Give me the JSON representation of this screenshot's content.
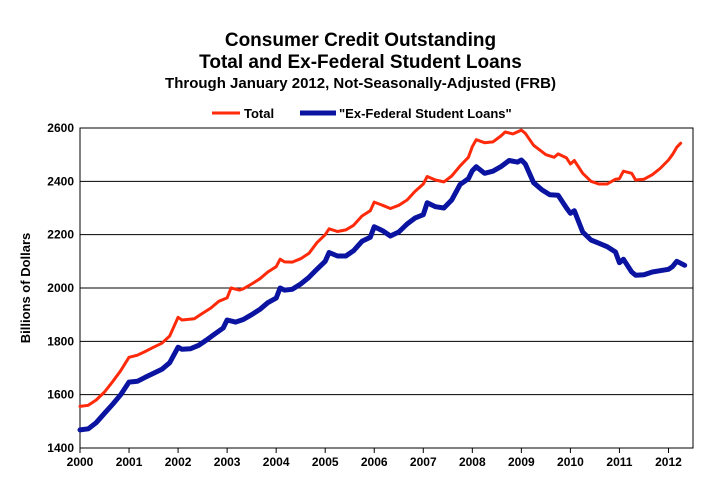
{
  "chart_data": {
    "type": "line",
    "title": "Consumer Credit Outstanding",
    "subtitle": "Total and Ex-Federal Student Loans",
    "subtitle2": "Through January 2012, Not-Seasonally-Adjusted (FRB)",
    "xlabel": "",
    "ylabel": "Billions of Dollars",
    "xlim": [
      2000,
      2012.5
    ],
    "ylim": [
      1400,
      2600
    ],
    "x_ticks": [
      "2000",
      "2001",
      "2002",
      "2003",
      "2004",
      "2005",
      "2006",
      "2007",
      "2008",
      "2009",
      "2010",
      "2011",
      "2012"
    ],
    "y_ticks": [
      "1400",
      "1600",
      "1800",
      "2000",
      "2200",
      "2400",
      "2600"
    ],
    "grid": "horizontal",
    "legend_position": "top",
    "series": [
      {
        "name": "Total",
        "color": "#ff2a0a",
        "points": [
          [
            2000.0,
            1556
          ],
          [
            2000.17,
            1560
          ],
          [
            2000.33,
            1580
          ],
          [
            2000.5,
            1610
          ],
          [
            2000.67,
            1650
          ],
          [
            2000.83,
            1690
          ],
          [
            2001.0,
            1740
          ],
          [
            2001.17,
            1748
          ],
          [
            2001.33,
            1762
          ],
          [
            2001.5,
            1778
          ],
          [
            2001.67,
            1793
          ],
          [
            2001.83,
            1820
          ],
          [
            2002.0,
            1890
          ],
          [
            2002.08,
            1880
          ],
          [
            2002.33,
            1885
          ],
          [
            2002.5,
            1905
          ],
          [
            2002.67,
            1925
          ],
          [
            2002.83,
            1950
          ],
          [
            2003.0,
            1963
          ],
          [
            2003.08,
            2000
          ],
          [
            2003.25,
            1992
          ],
          [
            2003.33,
            1997
          ],
          [
            2003.5,
            2015
          ],
          [
            2003.67,
            2035
          ],
          [
            2003.83,
            2060
          ],
          [
            2004.0,
            2080
          ],
          [
            2004.08,
            2108
          ],
          [
            2004.17,
            2098
          ],
          [
            2004.33,
            2097
          ],
          [
            2004.5,
            2110
          ],
          [
            2004.67,
            2130
          ],
          [
            2004.83,
            2170
          ],
          [
            2005.0,
            2200
          ],
          [
            2005.08,
            2222
          ],
          [
            2005.25,
            2212
          ],
          [
            2005.42,
            2218
          ],
          [
            2005.58,
            2235
          ],
          [
            2005.75,
            2270
          ],
          [
            2005.92,
            2290
          ],
          [
            2006.0,
            2322
          ],
          [
            2006.17,
            2310
          ],
          [
            2006.33,
            2298
          ],
          [
            2006.5,
            2310
          ],
          [
            2006.67,
            2330
          ],
          [
            2006.83,
            2362
          ],
          [
            2007.0,
            2390
          ],
          [
            2007.08,
            2418
          ],
          [
            2007.25,
            2405
          ],
          [
            2007.42,
            2398
          ],
          [
            2007.58,
            2420
          ],
          [
            2007.75,
            2458
          ],
          [
            2007.92,
            2490
          ],
          [
            2008.0,
            2530
          ],
          [
            2008.08,
            2556
          ],
          [
            2008.25,
            2545
          ],
          [
            2008.42,
            2548
          ],
          [
            2008.58,
            2570
          ],
          [
            2008.67,
            2585
          ],
          [
            2008.83,
            2578
          ],
          [
            2009.0,
            2592
          ],
          [
            2009.08,
            2580
          ],
          [
            2009.25,
            2535
          ],
          [
            2009.5,
            2500
          ],
          [
            2009.67,
            2490
          ],
          [
            2009.75,
            2503
          ],
          [
            2009.92,
            2488
          ],
          [
            2010.0,
            2465
          ],
          [
            2010.08,
            2478
          ],
          [
            2010.25,
            2430
          ],
          [
            2010.42,
            2400
          ],
          [
            2010.58,
            2390
          ],
          [
            2010.75,
            2390
          ],
          [
            2010.92,
            2408
          ],
          [
            2011.0,
            2410
          ],
          [
            2011.08,
            2438
          ],
          [
            2011.25,
            2430
          ],
          [
            2011.33,
            2405
          ],
          [
            2011.5,
            2408
          ],
          [
            2011.67,
            2425
          ],
          [
            2011.83,
            2448
          ],
          [
            2012.0,
            2480
          ],
          [
            2012.08,
            2500
          ],
          [
            2012.17,
            2528
          ],
          [
            2012.25,
            2543
          ]
        ]
      },
      {
        "name": "\"Ex-Federal Student Loans\"",
        "color": "#0a14a0",
        "points": [
          [
            2000.0,
            1468
          ],
          [
            2000.17,
            1472
          ],
          [
            2000.33,
            1495
          ],
          [
            2000.5,
            1530
          ],
          [
            2000.67,
            1565
          ],
          [
            2000.83,
            1600
          ],
          [
            2001.0,
            1647
          ],
          [
            2001.17,
            1650
          ],
          [
            2001.33,
            1665
          ],
          [
            2001.5,
            1680
          ],
          [
            2001.67,
            1695
          ],
          [
            2001.83,
            1720
          ],
          [
            2002.0,
            1778
          ],
          [
            2002.08,
            1770
          ],
          [
            2002.25,
            1772
          ],
          [
            2002.42,
            1785
          ],
          [
            2002.58,
            1805
          ],
          [
            2002.75,
            1828
          ],
          [
            2002.92,
            1850
          ],
          [
            2003.0,
            1880
          ],
          [
            2003.17,
            1872
          ],
          [
            2003.33,
            1882
          ],
          [
            2003.5,
            1900
          ],
          [
            2003.67,
            1920
          ],
          [
            2003.83,
            1945
          ],
          [
            2004.0,
            1962
          ],
          [
            2004.08,
            2000
          ],
          [
            2004.17,
            1992
          ],
          [
            2004.33,
            1995
          ],
          [
            2004.5,
            2015
          ],
          [
            2004.67,
            2040
          ],
          [
            2004.83,
            2070
          ],
          [
            2005.0,
            2100
          ],
          [
            2005.08,
            2133
          ],
          [
            2005.25,
            2120
          ],
          [
            2005.42,
            2120
          ],
          [
            2005.58,
            2140
          ],
          [
            2005.75,
            2175
          ],
          [
            2005.92,
            2190
          ],
          [
            2006.0,
            2230
          ],
          [
            2006.17,
            2215
          ],
          [
            2006.33,
            2195
          ],
          [
            2006.5,
            2210
          ],
          [
            2006.67,
            2240
          ],
          [
            2006.83,
            2262
          ],
          [
            2007.0,
            2275
          ],
          [
            2007.08,
            2320
          ],
          [
            2007.25,
            2305
          ],
          [
            2007.42,
            2300
          ],
          [
            2007.58,
            2330
          ],
          [
            2007.75,
            2388
          ],
          [
            2007.92,
            2410
          ],
          [
            2008.0,
            2440
          ],
          [
            2008.08,
            2455
          ],
          [
            2008.25,
            2430
          ],
          [
            2008.42,
            2438
          ],
          [
            2008.58,
            2455
          ],
          [
            2008.75,
            2478
          ],
          [
            2008.92,
            2472
          ],
          [
            2009.0,
            2480
          ],
          [
            2009.08,
            2465
          ],
          [
            2009.25,
            2395
          ],
          [
            2009.42,
            2368
          ],
          [
            2009.58,
            2350
          ],
          [
            2009.75,
            2348
          ],
          [
            2009.92,
            2300
          ],
          [
            2010.0,
            2280
          ],
          [
            2010.08,
            2290
          ],
          [
            2010.25,
            2210
          ],
          [
            2010.42,
            2180
          ],
          [
            2010.58,
            2168
          ],
          [
            2010.75,
            2155
          ],
          [
            2010.92,
            2135
          ],
          [
            2011.0,
            2095
          ],
          [
            2011.08,
            2108
          ],
          [
            2011.25,
            2060
          ],
          [
            2011.33,
            2048
          ],
          [
            2011.5,
            2050
          ],
          [
            2011.67,
            2060
          ],
          [
            2011.83,
            2065
          ],
          [
            2012.0,
            2070
          ],
          [
            2012.08,
            2080
          ],
          [
            2012.17,
            2100
          ],
          [
            2012.33,
            2085
          ]
        ]
      }
    ]
  }
}
